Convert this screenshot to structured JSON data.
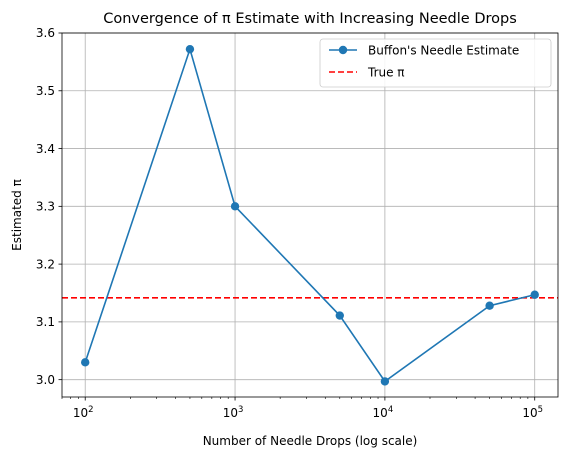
{
  "chart_data": {
    "type": "line",
    "title": "Convergence of π Estimate with Increasing Needle Drops",
    "xlabel": "Number of Needle Drops (log scale)",
    "ylabel": "Estimated π",
    "x_scale": "log",
    "xlim": [
      70,
      143000
    ],
    "ylim": [
      2.97,
      3.6
    ],
    "x_ticks": [
      {
        "value": 100,
        "base": "10",
        "exp": "2"
      },
      {
        "value": 1000,
        "base": "10",
        "exp": "3"
      },
      {
        "value": 10000,
        "base": "10",
        "exp": "4"
      },
      {
        "value": 100000,
        "base": "10",
        "exp": "5"
      }
    ],
    "y_ticks": [
      {
        "value": 3.0,
        "label": "3.0"
      },
      {
        "value": 3.1,
        "label": "3.1"
      },
      {
        "value": 3.2,
        "label": "3.2"
      },
      {
        "value": 3.3,
        "label": "3.3"
      },
      {
        "value": 3.4,
        "label": "3.4"
      },
      {
        "value": 3.5,
        "label": "3.5"
      },
      {
        "value": 3.6,
        "label": "3.6"
      }
    ],
    "grid": true,
    "legend_position": "top-right",
    "series": [
      {
        "name": "Buffon's Needle Estimate",
        "color": "#1f77b4",
        "marker": "circle",
        "x": [
          100,
          500,
          1000,
          5000,
          10000,
          50000,
          100000
        ],
        "y": [
          3.03,
          3.572,
          3.3,
          3.111,
          2.997,
          3.128,
          3.147
        ]
      }
    ],
    "reference_lines": [
      {
        "name": "True π",
        "value": 3.14159,
        "color": "#ff0000",
        "style": "dashed"
      }
    ]
  }
}
